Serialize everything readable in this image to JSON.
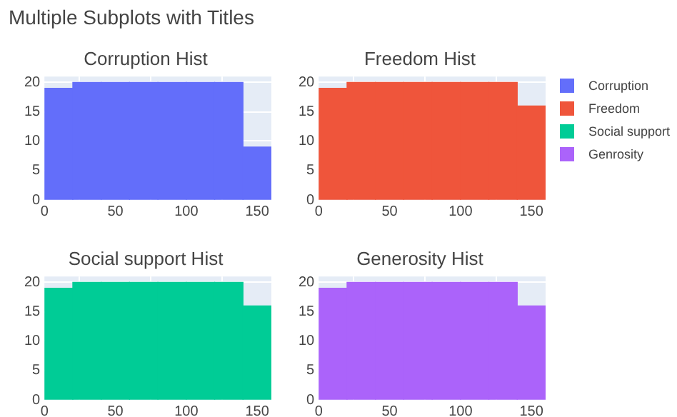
{
  "chart_data": [
    {
      "type": "histogram",
      "title": "Corruption Hist",
      "annotations": [
        "Multiple Subplots with Titles"
      ],
      "bins": [
        0,
        20,
        40,
        60,
        80,
        100,
        120,
        140,
        160
      ],
      "series": [
        {
          "name": "Corruption",
          "color": "#636efa",
          "values": [
            19,
            20,
            20,
            20,
            20,
            20,
            20,
            9
          ]
        }
      ],
      "xlim": [
        0,
        160
      ],
      "xticks": [
        0,
        50,
        100,
        150
      ],
      "ylim": [
        0,
        21
      ],
      "yticks": [
        0,
        5,
        10,
        15,
        20
      ],
      "grid": true,
      "legend": "right"
    },
    {
      "type": "histogram",
      "title": "Freedom Hist",
      "bins": [
        0,
        20,
        40,
        60,
        80,
        100,
        120,
        140,
        160
      ],
      "series": [
        {
          "name": "Freedom",
          "color": "#ef553b",
          "values": [
            19,
            20,
            20,
            20,
            20,
            20,
            20,
            16
          ]
        }
      ],
      "xlim": [
        0,
        160
      ],
      "xticks": [
        0,
        50,
        100,
        150
      ],
      "ylim": [
        0,
        21
      ],
      "yticks": [
        0,
        5,
        10,
        15,
        20
      ],
      "grid": true,
      "legend": "right"
    },
    {
      "type": "histogram",
      "title": "Social support Hist",
      "bins": [
        0,
        20,
        40,
        60,
        80,
        100,
        120,
        140,
        160
      ],
      "series": [
        {
          "name": "Social support",
          "color": "#00cc96",
          "values": [
            19,
            20,
            20,
            20,
            20,
            20,
            20,
            16
          ]
        }
      ],
      "xlim": [
        0,
        160
      ],
      "xticks": [
        0,
        50,
        100,
        150
      ],
      "ylim": [
        0,
        21
      ],
      "yticks": [
        0,
        5,
        10,
        15,
        20
      ],
      "grid": true,
      "legend": "right"
    },
    {
      "type": "histogram",
      "title": "Generosity Hist",
      "bins": [
        0,
        20,
        40,
        60,
        80,
        100,
        120,
        140,
        160
      ],
      "series": [
        {
          "name": "Genrosity",
          "color": "#ab63fa",
          "values": [
            19,
            20,
            20,
            20,
            20,
            20,
            20,
            16
          ]
        }
      ],
      "xlim": [
        0,
        160
      ],
      "xticks": [
        0,
        50,
        100,
        150
      ],
      "ylim": [
        0,
        21
      ],
      "yticks": [
        0,
        5,
        10,
        15,
        20
      ],
      "grid": true,
      "legend": "right"
    }
  ]
}
